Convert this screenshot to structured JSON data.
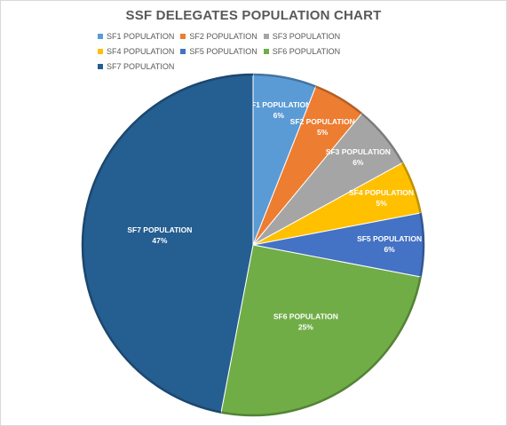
{
  "chart_data": {
    "type": "pie",
    "title": "SSF DELEGATES POPULATION CHART",
    "legend_placement": "top",
    "categories": [
      "SF1 POPULATION",
      "SF2 POPULATION",
      "SF3 POPULATION",
      "SF4 POPULATION",
      "SF5 POPULATION",
      "SF6 POPULATION",
      "SF7 POPULATION"
    ],
    "values": [
      6,
      5,
      6,
      5,
      6,
      25,
      47
    ],
    "value_labels": [
      "6%",
      "5%",
      "6%",
      "5%",
      "6%",
      "25%",
      "47%"
    ],
    "colors": [
      "#5b9bd5",
      "#ed7d31",
      "#a5a5a5",
      "#ffc000",
      "#4472c4",
      "#70ad47",
      "#255e91"
    ]
  }
}
